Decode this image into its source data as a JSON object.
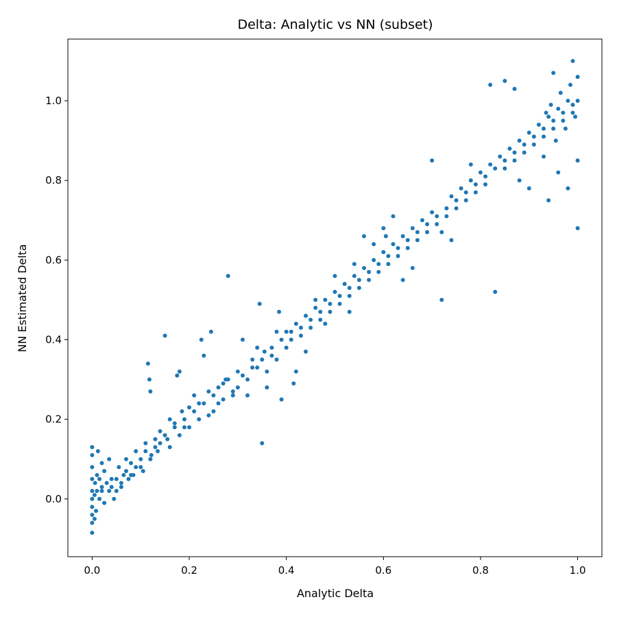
{
  "chart_data": {
    "type": "scatter",
    "title": "Delta: Analytic vs NN (subset)",
    "xlabel": "Analytic Delta",
    "ylabel": "NN Estimated Delta",
    "xlim": [
      -0.05,
      1.05
    ],
    "ylim": [
      -0.145,
      1.155
    ],
    "xticks": [
      0.0,
      0.2,
      0.4,
      0.6,
      0.8,
      1.0
    ],
    "yticks": [
      0.0,
      0.2,
      0.4,
      0.6,
      0.8,
      1.0
    ],
    "xtick_labels": [
      "0.0",
      "0.2",
      "0.4",
      "0.6",
      "0.8",
      "1.0"
    ],
    "ytick_labels": [
      "0.0",
      "0.2",
      "0.4",
      "0.6",
      "0.8",
      "1.0"
    ],
    "grid": false,
    "legend": "none",
    "series_color": "#1f77b4",
    "series": [
      {
        "points": [
          [
            0.0,
            -0.085
          ],
          [
            0.0,
            -0.06
          ],
          [
            0.0,
            -0.04
          ],
          [
            0.0,
            -0.02
          ],
          [
            0.0,
            0.0
          ],
          [
            0.0,
            0.02
          ],
          [
            0.0,
            0.05
          ],
          [
            0.0,
            0.08
          ],
          [
            0.0,
            0.11
          ],
          [
            0.0,
            0.13
          ],
          [
            0.005,
            -0.05
          ],
          [
            0.005,
            0.01
          ],
          [
            0.006,
            0.04
          ],
          [
            0.008,
            -0.03
          ],
          [
            0.01,
            0.06
          ],
          [
            0.012,
            0.12
          ],
          [
            0.015,
            0.0
          ],
          [
            0.02,
            0.02
          ],
          [
            0.02,
            0.09
          ],
          [
            0.025,
            -0.01
          ],
          [
            0.03,
            0.04
          ],
          [
            0.035,
            0.1
          ],
          [
            0.04,
            0.03
          ],
          [
            0.045,
            0.0
          ],
          [
            0.05,
            0.05
          ],
          [
            0.055,
            0.08
          ],
          [
            0.06,
            0.03
          ],
          [
            0.065,
            0.06
          ],
          [
            0.07,
            0.1
          ],
          [
            0.075,
            0.05
          ],
          [
            0.08,
            0.09
          ],
          [
            0.085,
            0.06
          ],
          [
            0.09,
            0.12
          ],
          [
            0.1,
            0.1
          ],
          [
            0.105,
            0.07
          ],
          [
            0.11,
            0.14
          ],
          [
            0.115,
            0.34
          ],
          [
            0.118,
            0.3
          ],
          [
            0.12,
            0.27
          ],
          [
            0.122,
            0.11
          ],
          [
            0.13,
            0.15
          ],
          [
            0.135,
            0.12
          ],
          [
            0.14,
            0.17
          ],
          [
            0.15,
            0.41
          ],
          [
            0.155,
            0.15
          ],
          [
            0.16,
            0.2
          ],
          [
            0.17,
            0.18
          ],
          [
            0.175,
            0.31
          ],
          [
            0.18,
            0.32
          ],
          [
            0.185,
            0.22
          ],
          [
            0.19,
            0.2
          ],
          [
            0.2,
            0.23
          ],
          [
            0.21,
            0.26
          ],
          [
            0.22,
            0.24
          ],
          [
            0.225,
            0.4
          ],
          [
            0.23,
            0.36
          ],
          [
            0.24,
            0.27
          ],
          [
            0.245,
            0.42
          ],
          [
            0.25,
            0.22
          ],
          [
            0.26,
            0.28
          ],
          [
            0.27,
            0.25
          ],
          [
            0.275,
            0.3
          ],
          [
            0.28,
            0.56
          ],
          [
            0.29,
            0.26
          ],
          [
            0.3,
            0.32
          ],
          [
            0.31,
            0.4
          ],
          [
            0.32,
            0.3
          ],
          [
            0.33,
            0.35
          ],
          [
            0.34,
            0.33
          ],
          [
            0.345,
            0.49
          ],
          [
            0.35,
            0.14
          ],
          [
            0.355,
            0.37
          ],
          [
            0.36,
            0.32
          ],
          [
            0.37,
            0.38
          ],
          [
            0.38,
            0.35
          ],
          [
            0.385,
            0.47
          ],
          [
            0.39,
            0.25
          ],
          [
            0.4,
            0.42
          ],
          [
            0.41,
            0.4
          ],
          [
            0.415,
            0.29
          ],
          [
            0.42,
            0.44
          ],
          [
            0.43,
            0.41
          ],
          [
            0.44,
            0.46
          ],
          [
            0.45,
            0.43
          ],
          [
            0.46,
            0.48
          ],
          [
            0.47,
            0.45
          ],
          [
            0.48,
            0.5
          ],
          [
            0.49,
            0.47
          ],
          [
            0.5,
            0.52
          ],
          [
            0.51,
            0.49
          ],
          [
            0.52,
            0.54
          ],
          [
            0.53,
            0.51
          ],
          [
            0.54,
            0.56
          ],
          [
            0.55,
            0.53
          ],
          [
            0.56,
            0.58
          ],
          [
            0.57,
            0.55
          ],
          [
            0.58,
            0.6
          ],
          [
            0.59,
            0.57
          ],
          [
            0.6,
            0.62
          ],
          [
            0.605,
            0.66
          ],
          [
            0.61,
            0.59
          ],
          [
            0.62,
            0.64
          ],
          [
            0.63,
            0.61
          ],
          [
            0.64,
            0.66
          ],
          [
            0.65,
            0.63
          ],
          [
            0.66,
            0.68
          ],
          [
            0.67,
            0.65
          ],
          [
            0.68,
            0.7
          ],
          [
            0.69,
            0.67
          ],
          [
            0.7,
            0.72
          ],
          [
            0.71,
            0.69
          ],
          [
            0.72,
            0.5
          ],
          [
            0.73,
            0.71
          ],
          [
            0.74,
            0.76
          ],
          [
            0.75,
            0.73
          ],
          [
            0.76,
            0.78
          ],
          [
            0.77,
            0.75
          ],
          [
            0.78,
            0.8
          ],
          [
            0.79,
            0.77
          ],
          [
            0.8,
            0.82
          ],
          [
            0.81,
            0.79
          ],
          [
            0.82,
            0.84
          ],
          [
            0.83,
            0.52
          ],
          [
            0.84,
            0.86
          ],
          [
            0.85,
            0.83
          ],
          [
            0.86,
            0.88
          ],
          [
            0.87,
            0.85
          ],
          [
            0.88,
            0.9
          ],
          [
            0.89,
            0.87
          ],
          [
            0.9,
            0.92
          ],
          [
            0.91,
            0.89
          ],
          [
            0.92,
            0.94
          ],
          [
            0.93,
            0.91
          ],
          [
            0.94,
            0.96
          ],
          [
            0.95,
            0.93
          ],
          [
            0.96,
            0.98
          ],
          [
            0.97,
            0.95
          ],
          [
            0.98,
            1.0
          ],
          [
            0.99,
            0.97
          ],
          [
            1.0,
            0.68
          ],
          [
            1.0,
            0.85
          ],
          [
            1.0,
            1.0
          ],
          [
            1.0,
            1.06
          ],
          [
            0.99,
            1.1
          ],
          [
            0.98,
            0.78
          ],
          [
            0.96,
            0.82
          ],
          [
            0.94,
            0.75
          ],
          [
            0.93,
            0.86
          ],
          [
            0.9,
            0.78
          ],
          [
            0.88,
            0.8
          ],
          [
            0.82,
            1.04
          ],
          [
            0.85,
            1.05
          ],
          [
            0.87,
            1.03
          ],
          [
            0.95,
            1.07
          ],
          [
            0.78,
            0.84
          ],
          [
            0.74,
            0.65
          ],
          [
            0.72,
            0.67
          ],
          [
            0.7,
            0.85
          ],
          [
            0.66,
            0.58
          ],
          [
            0.64,
            0.55
          ],
          [
            0.6,
            0.68
          ],
          [
            0.62,
            0.71
          ],
          [
            0.58,
            0.64
          ],
          [
            0.56,
            0.66
          ],
          [
            0.54,
            0.59
          ],
          [
            0.53,
            0.47
          ],
          [
            0.5,
            0.56
          ],
          [
            0.48,
            0.44
          ],
          [
            0.46,
            0.5
          ],
          [
            0.44,
            0.37
          ],
          [
            0.42,
            0.32
          ],
          [
            0.4,
            0.38
          ],
          [
            0.38,
            0.42
          ],
          [
            0.36,
            0.28
          ],
          [
            0.34,
            0.38
          ],
          [
            0.32,
            0.26
          ],
          [
            0.3,
            0.28
          ],
          [
            0.28,
            0.3
          ],
          [
            0.26,
            0.24
          ],
          [
            0.24,
            0.21
          ],
          [
            0.22,
            0.2
          ],
          [
            0.2,
            0.18
          ],
          [
            0.18,
            0.16
          ],
          [
            0.16,
            0.13
          ],
          [
            0.14,
            0.14
          ],
          [
            0.12,
            0.1
          ],
          [
            0.1,
            0.08
          ],
          [
            0.08,
            0.06
          ],
          [
            0.06,
            0.04
          ],
          [
            0.04,
            0.05
          ],
          [
            0.02,
            0.03
          ],
          [
            0.01,
            0.02
          ],
          [
            0.015,
            0.05
          ],
          [
            0.025,
            0.07
          ],
          [
            0.035,
            0.02
          ],
          [
            0.05,
            0.02
          ],
          [
            0.07,
            0.07
          ],
          [
            0.09,
            0.08
          ],
          [
            0.11,
            0.12
          ],
          [
            0.13,
            0.13
          ],
          [
            0.15,
            0.16
          ],
          [
            0.17,
            0.19
          ],
          [
            0.19,
            0.18
          ],
          [
            0.21,
            0.22
          ],
          [
            0.23,
            0.24
          ],
          [
            0.25,
            0.26
          ],
          [
            0.27,
            0.29
          ],
          [
            0.29,
            0.27
          ],
          [
            0.31,
            0.31
          ],
          [
            0.33,
            0.33
          ],
          [
            0.35,
            0.35
          ],
          [
            0.37,
            0.36
          ],
          [
            0.39,
            0.4
          ],
          [
            0.41,
            0.42
          ],
          [
            0.43,
            0.43
          ],
          [
            0.45,
            0.45
          ],
          [
            0.47,
            0.47
          ],
          [
            0.49,
            0.49
          ],
          [
            0.51,
            0.51
          ],
          [
            0.53,
            0.53
          ],
          [
            0.55,
            0.55
          ],
          [
            0.57,
            0.57
          ],
          [
            0.59,
            0.59
          ],
          [
            0.61,
            0.61
          ],
          [
            0.63,
            0.63
          ],
          [
            0.65,
            0.65
          ],
          [
            0.67,
            0.67
          ],
          [
            0.69,
            0.69
          ],
          [
            0.71,
            0.71
          ],
          [
            0.73,
            0.73
          ],
          [
            0.75,
            0.75
          ],
          [
            0.77,
            0.77
          ],
          [
            0.79,
            0.79
          ],
          [
            0.81,
            0.81
          ],
          [
            0.83,
            0.83
          ],
          [
            0.85,
            0.85
          ],
          [
            0.87,
            0.87
          ],
          [
            0.89,
            0.89
          ],
          [
            0.91,
            0.91
          ],
          [
            0.93,
            0.93
          ],
          [
            0.95,
            0.95
          ],
          [
            0.97,
            0.97
          ],
          [
            0.99,
            0.99
          ],
          [
            0.965,
            1.02
          ],
          [
            0.975,
            0.93
          ],
          [
            0.985,
            1.04
          ],
          [
            0.995,
            0.96
          ],
          [
            0.955,
            0.9
          ],
          [
            0.945,
            0.99
          ],
          [
            0.935,
            0.97
          ]
        ]
      }
    ]
  }
}
